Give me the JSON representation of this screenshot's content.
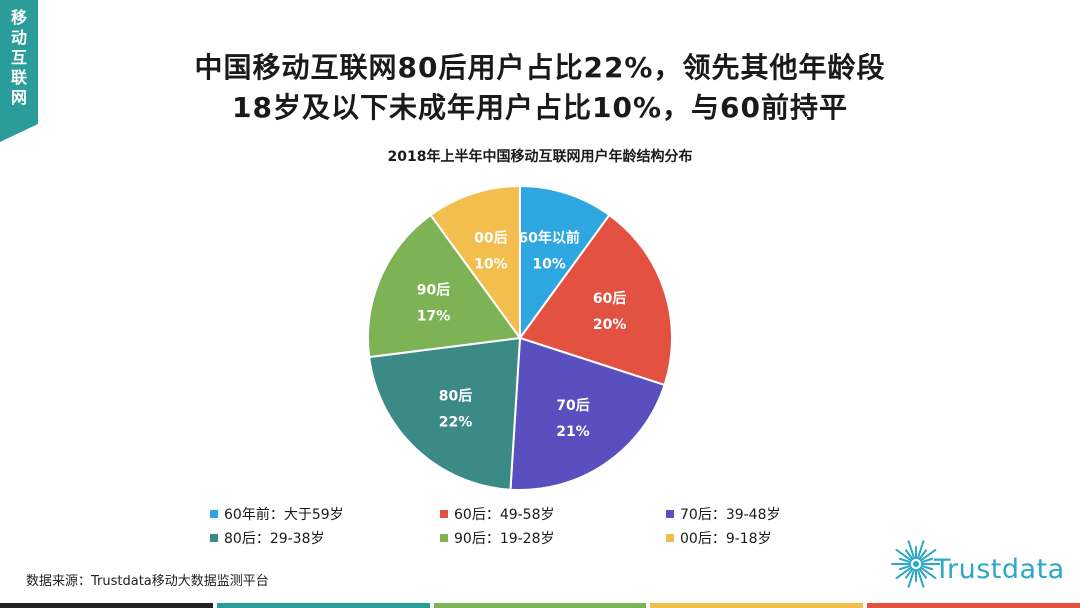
{
  "side_tab": "移\n动\n互\n联\n网",
  "headline": {
    "line1": "中国移动互联网80后用户占比22%，领先其他年龄段",
    "line2": "18岁及以下未成年用户占比10%，与60前持平"
  },
  "chart_data": {
    "type": "pie",
    "title": "2018年上半年中国移动互联网用户年龄结构分布",
    "unit": "%",
    "slices": [
      {
        "label": "60年以前",
        "value": 10,
        "color": "#2ea7e0",
        "legend": "60年前：大于59岁"
      },
      {
        "label": "60后",
        "value": 20,
        "color": "#e35141",
        "legend": "60后：49-58岁"
      },
      {
        "label": "70后",
        "value": 21,
        "color": "#5a4fbf",
        "legend": "70后：39-48岁"
      },
      {
        "label": "80后",
        "value": 22,
        "color": "#3b8a86",
        "legend": "80后：29-38岁"
      },
      {
        "label": "90后",
        "value": 17,
        "color": "#7db354",
        "legend": "90后：19-28岁"
      },
      {
        "label": "00后",
        "value": 10,
        "color": "#f2be4e",
        "legend": "00后：9-18岁"
      }
    ],
    "legend_placement": "bottom"
  },
  "source": "数据来源：Trustdata移动大数据监测平台",
  "logo": {
    "name": "Trustdata",
    "icon": "burst-logo-icon"
  },
  "footer_colors": [
    "#222222",
    "#2a9d9a",
    "#7db354",
    "#f2be4e",
    "#e35141"
  ]
}
